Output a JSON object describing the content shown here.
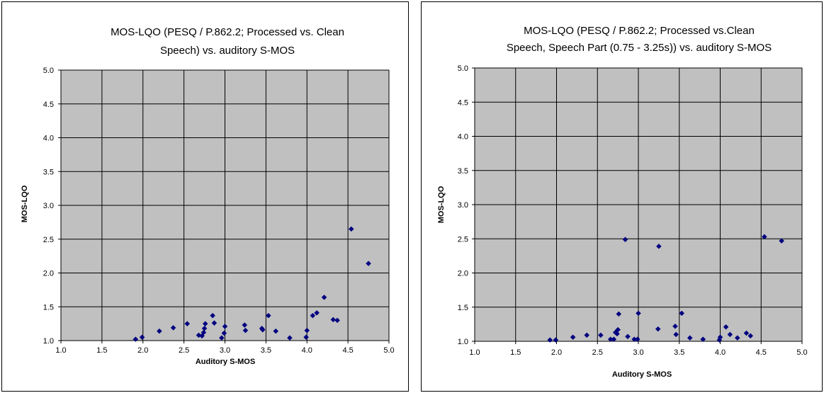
{
  "chart_data": [
    {
      "type": "scatter",
      "title_lines": [
        "MOS-LQO (PESQ / P.862.2; Processed vs. Clean",
        "Speech) vs. auditory S-MOS"
      ],
      "xlabel": "Auditory S-MOS",
      "ylabel": "MOS-LQO",
      "xlim": [
        1.0,
        5.0
      ],
      "ylim": [
        1.0,
        5.0
      ],
      "xticks": [
        "1.0",
        "1.5",
        "2.0",
        "2.5",
        "3.0",
        "3.5",
        "4.0",
        "4.5",
        "5.0"
      ],
      "yticks": [
        "1.0",
        "1.5",
        "2.0",
        "2.5",
        "3.0",
        "3.5",
        "4.0",
        "4.5",
        "5.0"
      ],
      "grid": true,
      "marker_color": "#000080",
      "plot_bg": "#c0c0c0",
      "series": [
        {
          "points": [
            [
              1.91,
              1.02
            ],
            [
              1.99,
              1.05
            ],
            [
              2.2,
              1.14
            ],
            [
              2.37,
              1.19
            ],
            [
              2.54,
              1.25
            ],
            [
              2.68,
              1.08
            ],
            [
              2.72,
              1.07
            ],
            [
              2.74,
              1.12
            ],
            [
              2.75,
              1.18
            ],
            [
              2.76,
              1.25
            ],
            [
              2.85,
              1.37
            ],
            [
              2.87,
              1.26
            ],
            [
              2.96,
              1.04
            ],
            [
              2.99,
              1.11
            ],
            [
              3.0,
              1.21
            ],
            [
              3.24,
              1.23
            ],
            [
              3.25,
              1.15
            ],
            [
              3.45,
              1.18
            ],
            [
              3.46,
              1.16
            ],
            [
              3.53,
              1.37
            ],
            [
              3.62,
              1.14
            ],
            [
              3.79,
              1.04
            ],
            [
              3.99,
              1.05
            ],
            [
              4.0,
              1.15
            ],
            [
              4.07,
              1.37
            ],
            [
              4.12,
              1.41
            ],
            [
              4.21,
              1.64
            ],
            [
              4.32,
              1.31
            ],
            [
              4.37,
              1.3
            ],
            [
              4.54,
              2.65
            ],
            [
              4.75,
              2.14
            ]
          ]
        }
      ]
    },
    {
      "type": "scatter",
      "title_lines": [
        "MOS-LQO (PESQ / P.862.2; Processed vs.Clean",
        "Speech, Speech Part (0.75 - 3.25s)) vs. auditory  S-MOS"
      ],
      "xlabel": "Auditory S-MOS",
      "ylabel": "MOS-LQO",
      "xlim": [
        1.0,
        5.0
      ],
      "ylim": [
        1.0,
        5.0
      ],
      "xticks": [
        "1.0",
        "1.5",
        "2.0",
        "2.5",
        "3.0",
        "3.5",
        "4.0",
        "4.5",
        "5.0"
      ],
      "yticks": [
        "1.0",
        "1.5",
        "2.0",
        "2.5",
        "3.0",
        "3.5",
        "4.0",
        "4.5",
        "5.0"
      ],
      "grid": true,
      "marker_color": "#000080",
      "plot_bg": "#c0c0c0",
      "series": [
        {
          "points": [
            [
              1.92,
              1.02
            ],
            [
              1.99,
              1.02
            ],
            [
              2.2,
              1.06
            ],
            [
              2.37,
              1.09
            ],
            [
              2.54,
              1.09
            ],
            [
              2.66,
              1.03
            ],
            [
              2.7,
              1.03
            ],
            [
              2.72,
              1.13
            ],
            [
              2.74,
              1.11
            ],
            [
              2.75,
              1.17
            ],
            [
              2.76,
              1.4
            ],
            [
              2.84,
              2.49
            ],
            [
              2.87,
              1.07
            ],
            [
              2.95,
              1.03
            ],
            [
              2.99,
              1.03
            ],
            [
              3.0,
              1.41
            ],
            [
              3.24,
              1.18
            ],
            [
              3.25,
              2.39
            ],
            [
              3.45,
              1.22
            ],
            [
              3.46,
              1.1
            ],
            [
              3.53,
              1.41
            ],
            [
              3.63,
              1.05
            ],
            [
              3.79,
              1.03
            ],
            [
              3.99,
              1.02
            ],
            [
              4.0,
              1.06
            ],
            [
              4.07,
              1.21
            ],
            [
              4.12,
              1.1
            ],
            [
              4.21,
              1.05
            ],
            [
              4.32,
              1.12
            ],
            [
              4.37,
              1.08
            ],
            [
              4.54,
              2.53
            ],
            [
              4.75,
              2.47
            ]
          ]
        }
      ]
    }
  ]
}
